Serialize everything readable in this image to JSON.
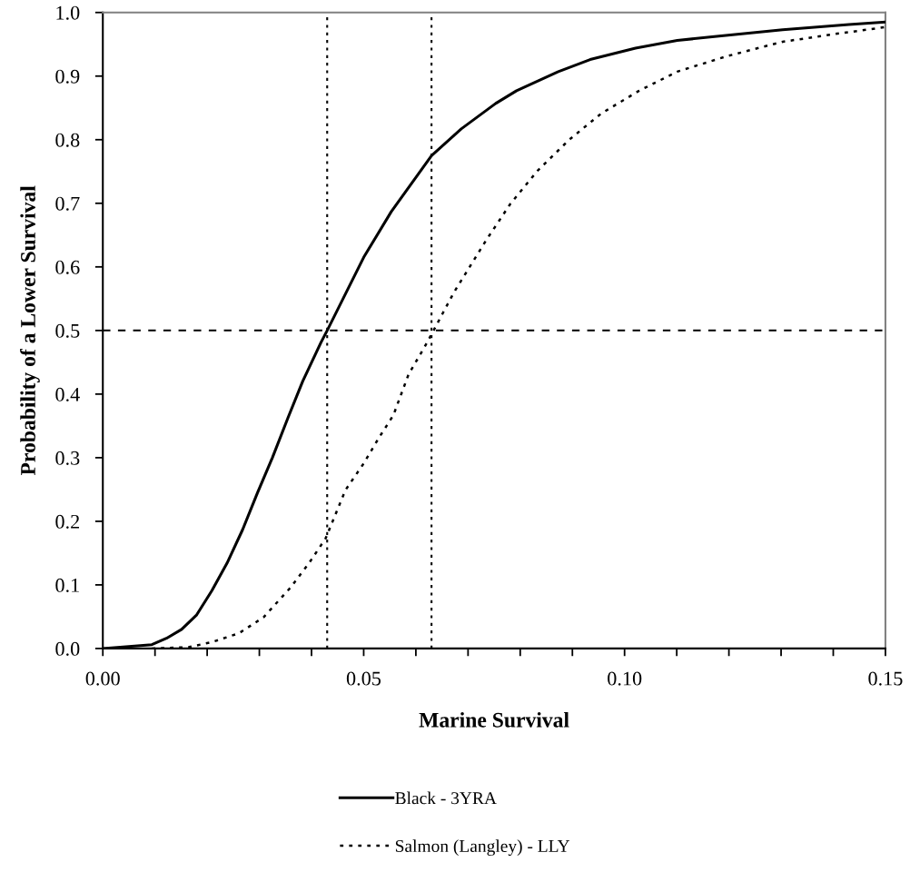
{
  "chart_data": {
    "type": "line",
    "xlabel": "Marine Survival",
    "ylabel": "Probability of a Lower Survival",
    "xlim": [
      0,
      0.15
    ],
    "ylim": [
      0,
      1.0
    ],
    "xticks": [
      {
        "value": 0,
        "label": "0.00"
      },
      {
        "value": 0.01,
        "label": null
      },
      {
        "value": 0.02,
        "label": null
      },
      {
        "value": 0.03,
        "label": null
      },
      {
        "value": 0.04,
        "label": null
      },
      {
        "value": 0.05,
        "label": "0.05"
      },
      {
        "value": 0.06,
        "label": null
      },
      {
        "value": 0.07,
        "label": null
      },
      {
        "value": 0.08,
        "label": null
      },
      {
        "value": 0.09,
        "label": null
      },
      {
        "value": 0.1,
        "label": "0.10"
      },
      {
        "value": 0.11,
        "label": null
      },
      {
        "value": 0.12,
        "label": null
      },
      {
        "value": 0.13,
        "label": null
      },
      {
        "value": 0.14,
        "label": null
      },
      {
        "value": 0.15,
        "label": "0.15"
      }
    ],
    "yticks": [
      {
        "value": 0,
        "label": "0.0"
      },
      0.1,
      0.2,
      0.3,
      0.4,
      0.5,
      0.6,
      0.7,
      0.8,
      0.9,
      {
        "value": 1.0,
        "label": "1.0"
      }
    ],
    "grid": false,
    "legend": "bottom",
    "marker": "none",
    "series": [
      {
        "name": "Black - 3YRA",
        "color": "#000000",
        "line_style": "solid",
        "x": [
          0,
          0.0094,
          0.0122,
          0.0151,
          0.018,
          0.0209,
          0.0238,
          0.0268,
          0.0296,
          0.0325,
          0.0355,
          0.0383,
          0.0418,
          0.043,
          0.05,
          0.0553,
          0.063,
          0.0687,
          0.0753,
          0.0793,
          0.0873,
          0.0934,
          0.1021,
          0.1101,
          0.1181,
          0.1303,
          0.143,
          0.15
        ],
        "values": [
          0,
          0.006,
          0.016,
          0.03,
          0.053,
          0.091,
          0.134,
          0.187,
          0.244,
          0.3,
          0.363,
          0.42,
          0.481,
          0.5,
          0.615,
          0.687,
          0.775,
          0.817,
          0.857,
          0.877,
          0.907,
          0.926,
          0.944,
          0.956,
          0.963,
          0.973,
          0.981,
          0.985
        ]
      },
      {
        "name": "Salmon (Langley) - LLY",
        "color": "#000000",
        "line_style": "dotted",
        "x": [
          0.0094,
          0.0164,
          0.0209,
          0.0261,
          0.0308,
          0.036,
          0.0395,
          0.0427,
          0.0465,
          0.05,
          0.0529,
          0.0557,
          0.0586,
          0.0616,
          0.063,
          0.0673,
          0.0734,
          0.0781,
          0.0833,
          0.0894,
          0.0955,
          0.1028,
          0.1101,
          0.1195,
          0.1303,
          0.1402,
          0.15
        ],
        "values": [
          0,
          0.002,
          0.01,
          0.024,
          0.049,
          0.096,
          0.134,
          0.173,
          0.249,
          0.291,
          0.331,
          0.367,
          0.431,
          0.473,
          0.494,
          0.56,
          0.641,
          0.699,
          0.751,
          0.8,
          0.841,
          0.877,
          0.907,
          0.931,
          0.954,
          0.966,
          0.977
        ]
      }
    ],
    "ref_lines": [
      {
        "axis": "x",
        "value": 0.043,
        "line_style": "dotted",
        "color": "#000000"
      },
      {
        "axis": "x",
        "value": 0.063,
        "line_style": "dotted",
        "color": "#000000"
      },
      {
        "axis": "y",
        "value": 0.5,
        "line_style": "dashed",
        "color": "#000000"
      }
    ]
  }
}
